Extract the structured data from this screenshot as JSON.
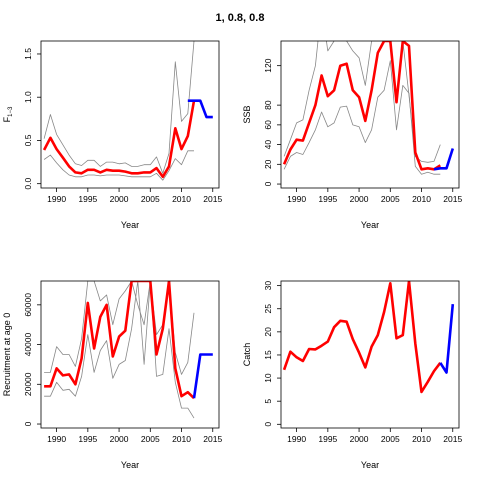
{
  "figure_title": "1, 0.8, 0.8",
  "colors": {
    "median": "#ff0000",
    "projection": "#0000ff",
    "bounds": "#888888",
    "axis": "#000000"
  },
  "chart_data": [
    {
      "type": "line",
      "xlabel": "Year",
      "ylabel_base": "F",
      "ylabel_sub": "1−3",
      "xlim": [
        1987.5,
        2016
      ],
      "ylim": [
        -0.05,
        1.65
      ],
      "xticks": [
        1990,
        1995,
        2000,
        2005,
        2010,
        2015
      ],
      "yticks": [
        0.0,
        0.5,
        1.0,
        1.5
      ],
      "ytick_labels": [
        "0.0",
        "0.5",
        "1.0",
        "1.5"
      ],
      "bounds_upper": {
        "x": [
          1988,
          1989,
          1990,
          1991,
          1992,
          1993,
          1994,
          1995,
          1996,
          1997,
          1998,
          1999,
          2000,
          2001,
          2002,
          2003,
          2004,
          2005,
          2006,
          2007,
          2008,
          2009,
          2010,
          2011,
          2012
        ],
        "y": [
          0.52,
          0.8,
          0.57,
          0.45,
          0.33,
          0.23,
          0.21,
          0.27,
          0.27,
          0.2,
          0.25,
          0.25,
          0.23,
          0.24,
          0.2,
          0.2,
          0.22,
          0.22,
          0.31,
          0.12,
          0.35,
          1.41,
          0.72,
          0.81,
          1.65
        ]
      },
      "bounds_lower": {
        "x": [
          1988,
          1989,
          1990,
          1991,
          1992,
          1993,
          1994,
          1995,
          1996,
          1997,
          1998,
          1999,
          2000,
          2001,
          2002,
          2003,
          2004,
          2005,
          2006,
          2007,
          2008,
          2009,
          2010,
          2011,
          2012
        ],
        "y": [
          0.28,
          0.33,
          0.24,
          0.16,
          0.1,
          0.08,
          0.08,
          0.1,
          0.1,
          0.09,
          0.1,
          0.1,
          0.1,
          0.09,
          0.08,
          0.08,
          0.08,
          0.08,
          0.12,
          0.04,
          0.15,
          0.29,
          0.22,
          0.38,
          0.38
        ]
      },
      "series": [
        {
          "role": "median",
          "x": [
            1988,
            1989,
            1990,
            1991,
            1992,
            1993,
            1994,
            1995,
            1996,
            1997,
            1998,
            1999,
            2000,
            2001,
            2002,
            2003,
            2004,
            2005,
            2006,
            2007,
            2008,
            2009,
            2010,
            2011,
            2012
          ],
          "y": [
            0.39,
            0.53,
            0.4,
            0.3,
            0.2,
            0.13,
            0.12,
            0.16,
            0.16,
            0.13,
            0.16,
            0.15,
            0.15,
            0.14,
            0.12,
            0.12,
            0.13,
            0.13,
            0.18,
            0.08,
            0.2,
            0.64,
            0.4,
            0.55,
            0.96
          ]
        },
        {
          "role": "projection",
          "x": [
            2011,
            2012,
            2013,
            2014,
            2015
          ],
          "y": [
            0.96,
            0.96,
            0.96,
            0.77,
            0.77
          ]
        }
      ]
    },
    {
      "type": "line",
      "xlabel": "Year",
      "ylabel_base": "SSB",
      "ylabel_sub": "",
      "xlim": [
        1987.5,
        2016
      ],
      "ylim": [
        -4,
        145
      ],
      "xticks": [
        1990,
        1995,
        2000,
        2005,
        2010,
        2015
      ],
      "yticks": [
        0,
        20,
        40,
        60,
        80,
        120
      ],
      "ytick_labels": [
        "0",
        "20",
        "40",
        "60",
        "80",
        "120"
      ],
      "bounds_upper": {
        "x": [
          1988,
          1989,
          1990,
          1991,
          1992,
          1993,
          1994,
          1995,
          1996,
          1997,
          1998,
          1999,
          2000,
          2001,
          2002,
          2003,
          2004,
          2005,
          2006,
          2007,
          2008,
          2009,
          2010,
          2011,
          2012,
          2013
        ],
        "y": [
          28,
          45,
          62,
          65,
          95,
          120,
          180,
          135,
          145,
          150,
          145,
          135,
          128,
          100,
          145,
          145,
          145,
          145,
          145,
          145,
          90,
          28,
          23,
          22,
          23,
          40
        ]
      },
      "bounds_lower": {
        "x": [
          1988,
          1989,
          1990,
          1991,
          1992,
          1993,
          1994,
          1995,
          1996,
          1997,
          1998,
          1999,
          2000,
          2001,
          2002,
          2003,
          2004,
          2005,
          2006,
          2007,
          2008,
          2009,
          2010,
          2011,
          2012,
          2013
        ],
        "y": [
          15,
          28,
          32,
          30,
          42,
          55,
          73,
          58,
          62,
          78,
          79,
          60,
          58,
          42,
          55,
          88,
          95,
          125,
          55,
          100,
          92,
          18,
          10,
          12,
          10,
          10
        ]
      },
      "series": [
        {
          "role": "median",
          "x": [
            1988,
            1989,
            1990,
            1991,
            1992,
            1993,
            1994,
            1995,
            1996,
            1997,
            1998,
            1999,
            2000,
            2001,
            2002,
            2003,
            2004,
            2005,
            2006,
            2007,
            2008,
            2009,
            2010,
            2011,
            2012,
            2013
          ],
          "y": [
            20,
            35,
            45,
            44,
            62,
            80,
            110,
            89,
            95,
            120,
            122,
            95,
            88,
            64,
            95,
            133,
            145,
            145,
            83,
            145,
            140,
            32,
            15,
            16,
            15,
            19
          ]
        },
        {
          "role": "projection",
          "x": [
            2012,
            2013,
            2014,
            2015
          ],
          "y": [
            15,
            16,
            16,
            36
          ]
        }
      ]
    },
    {
      "type": "line",
      "xlabel": "Year",
      "ylabel_base": "Recruitment at age 0",
      "ylabel_sub": "",
      "xlim": [
        1987.5,
        2016
      ],
      "ylim": [
        -2000,
        72000
      ],
      "xticks": [
        1990,
        1995,
        2000,
        2005,
        2010,
        2015
      ],
      "yticks": [
        0,
        20000,
        40000,
        60000
      ],
      "ytick_labels": [
        "0",
        "20000",
        "40000",
        "60000"
      ],
      "bounds_upper": {
        "x": [
          1988,
          1989,
          1990,
          1991,
          1992,
          1993,
          1994,
          1995,
          1996,
          1997,
          1998,
          1999,
          2000,
          2001,
          2002,
          2003,
          2004,
          2005,
          2006,
          2007,
          2008,
          2009,
          2010,
          2011,
          2012
        ],
        "y": [
          26000,
          26000,
          39000,
          35000,
          35000,
          29000,
          43000,
          72000,
          72000,
          62000,
          65000,
          50000,
          63000,
          67000,
          72000,
          60000,
          50000,
          72000,
          45000,
          50000,
          72000,
          36000,
          25000,
          31000,
          56000
        ]
      },
      "bounds_lower": {
        "x": [
          1988,
          1989,
          1990,
          1991,
          1992,
          1993,
          1994,
          1995,
          1996,
          1997,
          1998,
          1999,
          2000,
          2001,
          2002,
          2003,
          2004,
          2005,
          2006,
          2007,
          2008,
          2009,
          2010,
          2011,
          2012
        ],
        "y": [
          14000,
          14000,
          21000,
          17000,
          17500,
          14000,
          24000,
          45000,
          26000,
          37000,
          42000,
          23000,
          30000,
          32000,
          48000,
          72000,
          30000,
          72000,
          24000,
          25000,
          48000,
          21000,
          8000,
          8000,
          3000
        ]
      },
      "series": [
        {
          "role": "median",
          "x": [
            1988,
            1989,
            1990,
            1991,
            1992,
            1993,
            1994,
            1995,
            1996,
            1997,
            1998,
            1999,
            2000,
            2001,
            2002,
            2003,
            2004,
            2005,
            2006,
            2007,
            2008,
            2009,
            2010,
            2011,
            2012
          ],
          "y": [
            19000,
            19000,
            28000,
            24500,
            25000,
            20000,
            33000,
            61000,
            38000,
            54000,
            60000,
            34000,
            44000,
            47000,
            72000,
            72000,
            72000,
            72000,
            35000,
            48000,
            72000,
            28000,
            14000,
            16000,
            13000
          ]
        },
        {
          "role": "projection",
          "x": [
            2012,
            2013,
            2014,
            2015
          ],
          "y": [
            13000,
            35000,
            35000,
            35000
          ]
        }
      ]
    },
    {
      "type": "line",
      "xlabel": "Year",
      "ylabel_base": "Catch",
      "ylabel_sub": "",
      "xlim": [
        1987.5,
        2016
      ],
      "ylim": [
        -0.8,
        31
      ],
      "xticks": [
        1990,
        1995,
        2000,
        2005,
        2010,
        2015
      ],
      "yticks": [
        0,
        5,
        10,
        15,
        20,
        25,
        30
      ],
      "ytick_labels": [
        "0",
        "5",
        "10",
        "15",
        "20",
        "25",
        "30"
      ],
      "bounds_upper": null,
      "bounds_lower": null,
      "series": [
        {
          "role": "median",
          "x": [
            1988,
            1989,
            1990,
            1991,
            1992,
            1993,
            1994,
            1995,
            1996,
            1997,
            1998,
            1999,
            2000,
            2001,
            2002,
            2003,
            2004,
            2005,
            2006,
            2007,
            2008,
            2009,
            2010,
            2011,
            2012,
            2013
          ],
          "y": [
            11.8,
            15.7,
            14.5,
            13.7,
            16.3,
            16.2,
            17.0,
            17.9,
            21.0,
            22.4,
            22.2,
            18.4,
            15.5,
            12.3,
            16.8,
            19.3,
            24.3,
            30.5,
            18.6,
            19.3,
            31.0,
            17.5,
            7.0,
            9.2,
            11.5,
            13.3
          ]
        },
        {
          "role": "projection",
          "x": [
            2013,
            2014,
            2015
          ],
          "y": [
            13.3,
            11.2,
            26.0
          ]
        }
      ]
    }
  ]
}
